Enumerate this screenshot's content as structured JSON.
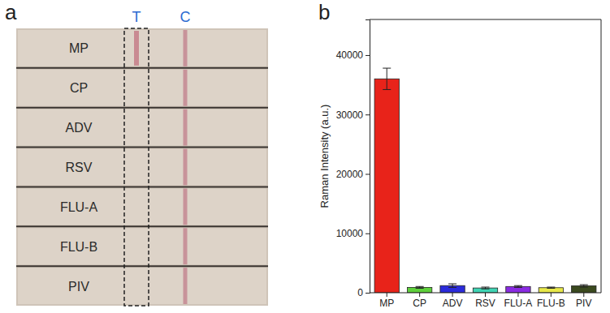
{
  "panel_labels": [
    "a",
    "b"
  ],
  "strip_panel": {
    "line_labels": [
      "T",
      "C"
    ],
    "strips": [
      {
        "name": "MP",
        "test_line": true
      },
      {
        "name": "CP",
        "test_line": false
      },
      {
        "name": "ADV",
        "test_line": false
      },
      {
        "name": "RSV",
        "test_line": false
      },
      {
        "name": "FLU-A",
        "test_line": false
      },
      {
        "name": "FLU-B",
        "test_line": false
      },
      {
        "name": "PIV",
        "test_line": false
      }
    ]
  },
  "chart_data": {
    "type": "bar",
    "y_label": "Raman Intensity (a.u.)",
    "categories": [
      "MP",
      "CP",
      "ADV",
      "RSV",
      "FLU-A",
      "FLU-B",
      "PIV"
    ],
    "values": [
      36000,
      900,
      1200,
      800,
      1050,
      850,
      1150
    ],
    "errors": [
      1800,
      150,
      300,
      150,
      150,
      100,
      200
    ],
    "colors": [
      "#e8231a",
      "#5fd03c",
      "#2b2bdb",
      "#3fd4b4",
      "#8a2be2",
      "#e8e84a",
      "#3b4a1f"
    ],
    "ylim": [
      0,
      46000
    ],
    "yticks": [
      0,
      10000,
      20000,
      30000,
      40000
    ]
  }
}
